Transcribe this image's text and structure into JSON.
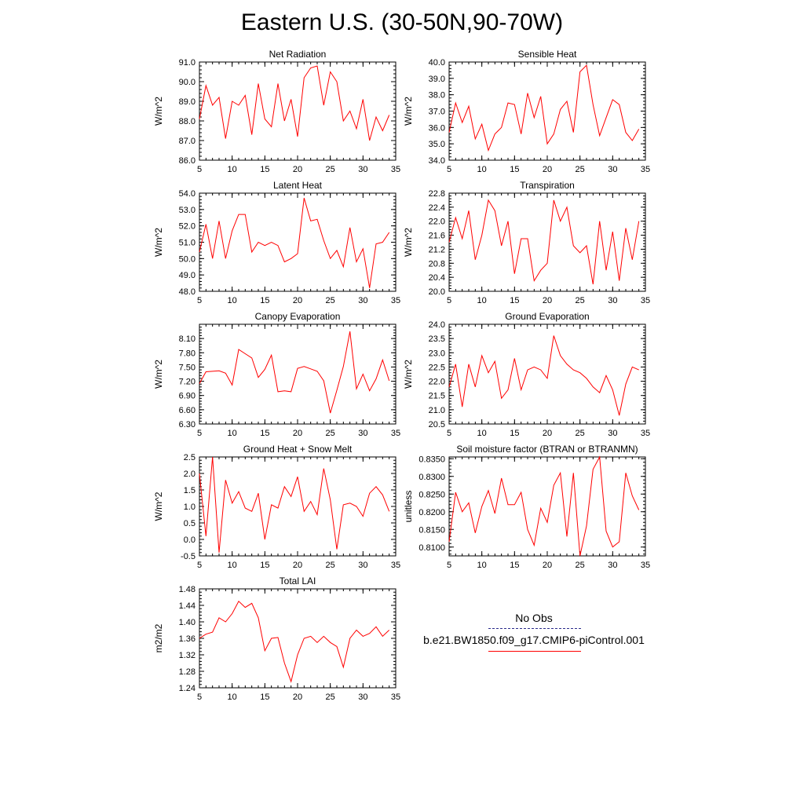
{
  "page": {
    "title": "Eastern U.S. (30-50N,90-70W)"
  },
  "legend": {
    "obs_label": "No Obs",
    "model_label": "b.e21.BW1850.f09_g17.CMIP6-piControl.001",
    "obs_color": "#2a2a8a",
    "model_color": "#ff0000"
  },
  "chart_data": [
    {
      "type": "line",
      "title": "Net Radiation",
      "ylabel": "W/m^2",
      "xlim": [
        5,
        35
      ],
      "ylim": [
        86.0,
        91.0
      ],
      "xticks": [
        "5",
        "10",
        "15",
        "20",
        "25",
        "30",
        "35"
      ],
      "yticks": [
        "86.0",
        "87.0",
        "88.0",
        "89.0",
        "90.0",
        "91.0"
      ],
      "x": [
        5,
        6,
        7,
        8,
        9,
        10,
        11,
        12,
        13,
        14,
        15,
        16,
        17,
        18,
        19,
        20,
        21,
        22,
        23,
        24,
        25,
        26,
        27,
        28,
        29,
        30,
        31,
        32,
        33,
        34
      ],
      "series": [
        {
          "values": [
            88.1,
            89.8,
            88.8,
            89.2,
            87.1,
            89.0,
            88.8,
            89.3,
            87.3,
            89.9,
            88.1,
            87.7,
            89.9,
            88.0,
            89.1,
            87.2,
            90.2,
            90.7,
            90.8,
            88.8,
            90.5,
            90.0,
            88.0,
            88.5,
            87.6,
            89.1,
            87.0,
            88.2,
            87.5,
            88.3
          ]
        }
      ]
    },
    {
      "type": "line",
      "title": "Sensible Heat",
      "ylabel": "W/m^2",
      "xlim": [
        5,
        35
      ],
      "ylim": [
        34.0,
        40.0
      ],
      "xticks": [
        "5",
        "10",
        "15",
        "20",
        "25",
        "30",
        "35"
      ],
      "yticks": [
        "34.0",
        "35.0",
        "36.0",
        "37.0",
        "38.0",
        "39.0",
        "40.0"
      ],
      "x": [
        5,
        6,
        7,
        8,
        9,
        10,
        11,
        12,
        13,
        14,
        15,
        16,
        17,
        18,
        19,
        20,
        21,
        22,
        23,
        24,
        25,
        26,
        27,
        28,
        29,
        30,
        31,
        32,
        33,
        34
      ],
      "series": [
        {
          "values": [
            35.7,
            37.5,
            36.3,
            37.3,
            35.3,
            36.2,
            34.6,
            35.6,
            36.0,
            37.5,
            37.4,
            35.6,
            38.1,
            36.6,
            37.9,
            35.0,
            35.6,
            37.1,
            37.6,
            35.7,
            39.4,
            39.8,
            37.4,
            35.5,
            36.6,
            37.7,
            37.4,
            35.7,
            35.2,
            35.9
          ]
        }
      ]
    },
    {
      "type": "line",
      "title": "Latent Heat",
      "ylabel": "W/m^2",
      "xlim": [
        5,
        35
      ],
      "ylim": [
        48.0,
        54.0
      ],
      "xticks": [
        "5",
        "10",
        "15",
        "20",
        "25",
        "30",
        "35"
      ],
      "yticks": [
        "48.0",
        "49.0",
        "50.0",
        "51.0",
        "52.0",
        "53.0",
        "54.0"
      ],
      "x": [
        5,
        6,
        7,
        8,
        9,
        10,
        11,
        12,
        13,
        14,
        15,
        16,
        17,
        18,
        19,
        20,
        21,
        22,
        23,
        24,
        25,
        26,
        27,
        28,
        29,
        30,
        31,
        32,
        33,
        34
      ],
      "series": [
        {
          "values": [
            50.4,
            52.1,
            50.0,
            52.3,
            50.0,
            51.7,
            52.7,
            52.7,
            50.4,
            51.0,
            50.8,
            51.0,
            50.8,
            49.8,
            50.0,
            50.3,
            53.7,
            52.3,
            52.4,
            51.1,
            50.0,
            50.5,
            49.5,
            51.9,
            49.8,
            50.6,
            48.2,
            50.9,
            51.0,
            51.6
          ]
        }
      ]
    },
    {
      "type": "line",
      "title": "Transpiration",
      "ylabel": "W/m^2",
      "xlim": [
        5,
        35
      ],
      "ylim": [
        20.0,
        22.8
      ],
      "xticks": [
        "5",
        "10",
        "15",
        "20",
        "25",
        "30",
        "35"
      ],
      "yticks": [
        "20.0",
        "20.4",
        "20.8",
        "21.2",
        "21.6",
        "22.0",
        "22.4",
        "22.8"
      ],
      "x": [
        5,
        6,
        7,
        8,
        9,
        10,
        11,
        12,
        13,
        14,
        15,
        16,
        17,
        18,
        19,
        20,
        21,
        22,
        23,
        24,
        25,
        26,
        27,
        28,
        29,
        30,
        31,
        32,
        33,
        34
      ],
      "series": [
        {
          "values": [
            21.4,
            22.1,
            21.5,
            22.3,
            20.9,
            21.6,
            22.6,
            22.3,
            21.3,
            22.0,
            20.5,
            21.5,
            21.5,
            20.3,
            20.6,
            20.8,
            22.6,
            22.0,
            22.4,
            21.3,
            21.1,
            21.3,
            20.2,
            22.0,
            20.6,
            21.7,
            20.3,
            21.8,
            20.9,
            22.0
          ]
        }
      ]
    },
    {
      "type": "line",
      "title": "Canopy Evaporation",
      "ylabel": "W/m^2",
      "xlim": [
        5,
        35
      ],
      "ylim": [
        6.3,
        8.4
      ],
      "xticks": [
        "5",
        "10",
        "15",
        "20",
        "25",
        "30",
        "35"
      ],
      "yticks": [
        "6.30",
        "6.60",
        "6.90",
        "7.20",
        "7.50",
        "7.80",
        "8.10"
      ],
      "x": [
        5,
        6,
        7,
        8,
        9,
        10,
        11,
        12,
        13,
        14,
        15,
        16,
        17,
        18,
        19,
        20,
        21,
        22,
        23,
        24,
        25,
        26,
        27,
        28,
        29,
        30,
        31,
        32,
        33,
        34
      ],
      "series": [
        {
          "values": [
            7.15,
            7.4,
            7.41,
            7.42,
            7.37,
            7.12,
            7.87,
            7.78,
            7.69,
            7.28,
            7.45,
            7.75,
            6.98,
            7.0,
            6.98,
            7.47,
            7.51,
            7.46,
            7.41,
            7.21,
            6.53,
            7.01,
            7.51,
            8.25,
            7.04,
            7.35,
            7.0,
            7.25,
            7.65,
            7.21
          ]
        }
      ]
    },
    {
      "type": "line",
      "title": "Ground Evaporation",
      "ylabel": "W/m^2",
      "xlim": [
        5,
        35
      ],
      "ylim": [
        20.5,
        24.0
      ],
      "xticks": [
        "5",
        "10",
        "15",
        "20",
        "25",
        "30",
        "35"
      ],
      "yticks": [
        "20.5",
        "21.0",
        "21.5",
        "22.0",
        "22.5",
        "23.0",
        "23.5",
        "24.0"
      ],
      "x": [
        5,
        6,
        7,
        8,
        9,
        10,
        11,
        12,
        13,
        14,
        15,
        16,
        17,
        18,
        19,
        20,
        21,
        22,
        23,
        24,
        25,
        26,
        27,
        28,
        29,
        30,
        31,
        32,
        33,
        34
      ],
      "series": [
        {
          "values": [
            21.8,
            22.6,
            21.1,
            22.6,
            21.8,
            22.9,
            22.3,
            22.7,
            21.4,
            21.7,
            22.8,
            21.7,
            22.4,
            22.5,
            22.4,
            22.1,
            23.6,
            22.9,
            22.6,
            22.4,
            22.3,
            22.1,
            21.8,
            21.6,
            22.2,
            21.7,
            20.8,
            21.9,
            22.5,
            22.4
          ]
        }
      ]
    },
    {
      "type": "line",
      "title": "Ground Heat + Snow Melt",
      "ylabel": "W/m^2",
      "xlim": [
        5,
        35
      ],
      "ylim": [
        -0.5,
        2.5
      ],
      "xticks": [
        "5",
        "10",
        "15",
        "20",
        "25",
        "30",
        "35"
      ],
      "yticks": [
        "-0.5",
        "0.0",
        "0.5",
        "1.0",
        "1.5",
        "2.0",
        "2.5"
      ],
      "x": [
        5,
        6,
        7,
        8,
        9,
        10,
        11,
        12,
        13,
        14,
        15,
        16,
        17,
        18,
        19,
        20,
        21,
        22,
        23,
        24,
        25,
        26,
        27,
        28,
        29,
        30,
        31,
        32,
        33,
        34
      ],
      "series": [
        {
          "values": [
            2.0,
            0.1,
            2.5,
            -0.4,
            1.8,
            1.1,
            1.45,
            0.95,
            0.85,
            1.4,
            0.0,
            1.05,
            0.95,
            1.6,
            1.3,
            1.9,
            0.85,
            1.15,
            0.75,
            2.15,
            1.2,
            -0.3,
            1.05,
            1.1,
            1.0,
            0.7,
            1.4,
            1.6,
            1.35,
            0.85
          ]
        }
      ]
    },
    {
      "type": "line",
      "title": "Soil moisture factor (BTRAN or BTRANMN)",
      "ylabel": "unitless",
      "xlim": [
        5,
        35
      ],
      "ylim": [
        0.8075,
        0.8355
      ],
      "xticks": [
        "5",
        "10",
        "15",
        "20",
        "25",
        "30",
        "35"
      ],
      "yticks": [
        "0.8100",
        "0.8150",
        "0.8200",
        "0.8250",
        "0.8300",
        "0.8350"
      ],
      "x": [
        5,
        6,
        7,
        8,
        9,
        10,
        11,
        12,
        13,
        14,
        15,
        16,
        17,
        18,
        19,
        20,
        21,
        22,
        23,
        24,
        25,
        26,
        27,
        28,
        29,
        30,
        31,
        32,
        33,
        34
      ],
      "series": [
        {
          "values": [
            0.8115,
            0.8255,
            0.82,
            0.8225,
            0.814,
            0.8215,
            0.826,
            0.8195,
            0.8295,
            0.822,
            0.822,
            0.8255,
            0.815,
            0.8105,
            0.821,
            0.817,
            0.8275,
            0.831,
            0.813,
            0.831,
            0.8075,
            0.816,
            0.832,
            0.8355,
            0.8145,
            0.81,
            0.8115,
            0.831,
            0.8245,
            0.8205
          ]
        }
      ]
    },
    {
      "type": "line",
      "title": "Total LAI",
      "ylabel": "m2/m2",
      "xlim": [
        5,
        35
      ],
      "ylim": [
        1.24,
        1.48
      ],
      "xticks": [
        "5",
        "10",
        "15",
        "20",
        "25",
        "30",
        "35"
      ],
      "yticks": [
        "1.24",
        "1.28",
        "1.32",
        "1.36",
        "1.40",
        "1.44",
        "1.48"
      ],
      "x": [
        5,
        6,
        7,
        8,
        9,
        10,
        11,
        12,
        13,
        14,
        15,
        16,
        17,
        18,
        19,
        20,
        21,
        22,
        23,
        24,
        25,
        26,
        27,
        28,
        29,
        30,
        31,
        32,
        33,
        34
      ],
      "series": [
        {
          "values": [
            1.36,
            1.37,
            1.375,
            1.41,
            1.4,
            1.42,
            1.45,
            1.435,
            1.445,
            1.41,
            1.33,
            1.36,
            1.362,
            1.3,
            1.255,
            1.32,
            1.36,
            1.365,
            1.35,
            1.365,
            1.35,
            1.34,
            1.29,
            1.36,
            1.38,
            1.365,
            1.372,
            1.388,
            1.365,
            1.38
          ]
        }
      ]
    }
  ]
}
